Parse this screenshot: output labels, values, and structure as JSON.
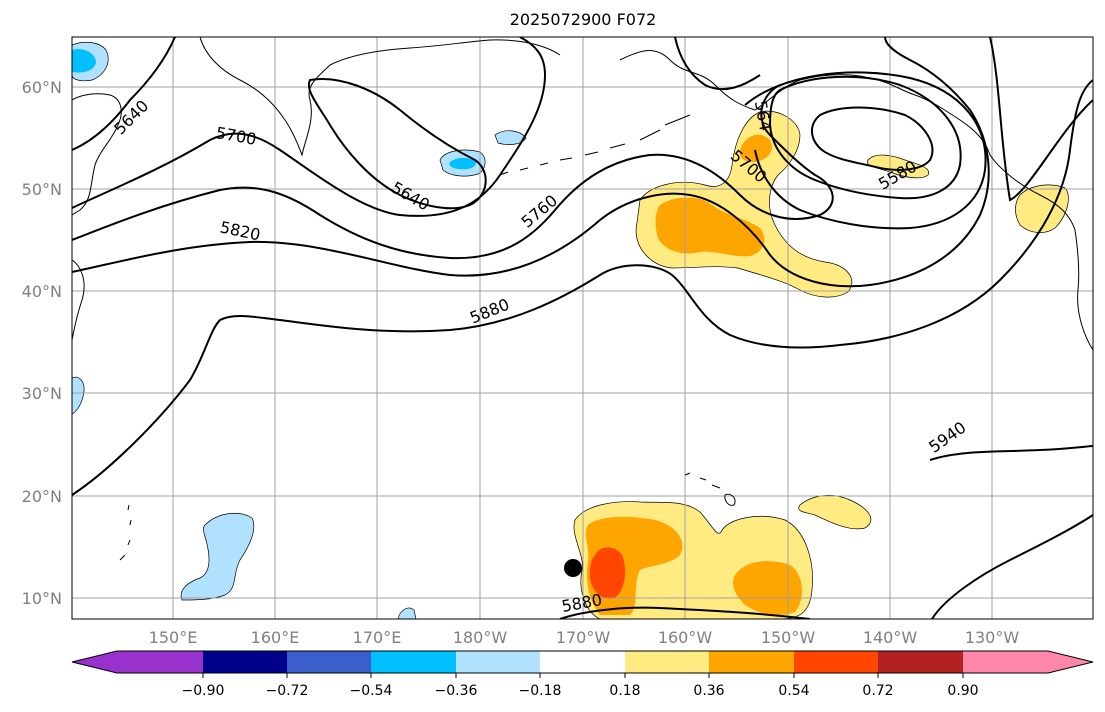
{
  "title": "2025072900 F072",
  "map": {
    "lon_labels": [
      "150°E",
      "160°E",
      "170°E",
      "180°W",
      "170°W",
      "160°W",
      "150°W",
      "140°W",
      "130°W"
    ],
    "lat_labels": [
      "60°N",
      "50°N",
      "40°N",
      "30°N",
      "20°N",
      "10°N"
    ],
    "contour_labels": [
      "5640",
      "5700",
      "5640",
      "5820",
      "5760",
      "5880",
      "5700",
      "564",
      "5580",
      "5940",
      "5880"
    ],
    "colorbar": {
      "colors": [
        "#9932cc",
        "#00008b",
        "#3a5fcd",
        "#00bfff",
        "#b0e2ff",
        "#ffffff",
        "#ffeb82",
        "#ffa500",
        "#ff4500",
        "#b22222",
        "#ff88aa"
      ],
      "tick_labels": [
        "−0.90",
        "−0.72",
        "−0.54",
        "−0.36",
        "−0.18",
        "0.18",
        "0.36",
        "0.54",
        "0.72",
        "0.90"
      ]
    }
  }
}
